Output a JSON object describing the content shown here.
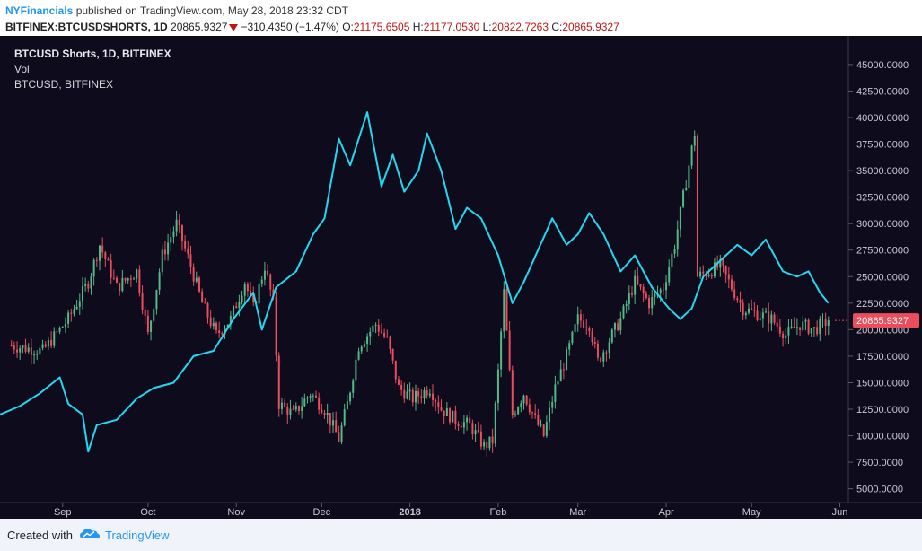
{
  "header": {
    "author": "NYFinancials",
    "published_text": "published on TradingView.com, May 28, 2018 23:32 CDT",
    "symbol": "BITFINEX:BTCUSDSHORTS, 1D",
    "last": "20865.9327",
    "change": "−310.4350 (−1.47%)",
    "o_label": "O:",
    "o_value": "21175.6505",
    "h_label": "H:",
    "h_value": "21177.0530",
    "l_label": "L:",
    "l_value": "20822.7263",
    "c_label": "C:",
    "c_value": "20865.9327"
  },
  "legend": {
    "line1": "BTCUSD Shorts, 1D, BITFINEX",
    "line2": "Vol",
    "line3": "BTCUSD, BITFINEX"
  },
  "footer": {
    "created_with": "Created with",
    "brand": "TradingView",
    "brand_icon": "tradingview-cloud-icon"
  },
  "colors": {
    "background": "#0d0b1c",
    "up": "#53b987",
    "down": "#eb4d5c",
    "btc_line": "#23d8f0",
    "price_tag": "#eb4d5c"
  },
  "chart_data": {
    "type": "candlestick",
    "y_axis": {
      "min": 3700,
      "max": 47700,
      "ticks": [
        5000,
        7500,
        10000,
        12500,
        15000,
        17500,
        20000,
        22500,
        25000,
        27500,
        30000,
        32500,
        35000,
        37500,
        40000,
        42500,
        45000
      ],
      "tick_labels": [
        "5000.0000",
        "7500.0000",
        "10000.0000",
        "12500.0000",
        "15000.0000",
        "17500.0000",
        "20000.0000",
        "22500.0000",
        "25000.0000",
        "27500.0000",
        "30000.0000",
        "32500.0000",
        "35000.0000",
        "37500.0000",
        "40000.0000",
        "42500.0000",
        "45000.0000"
      ],
      "position": "right"
    },
    "x_axis": {
      "start": "2017-08-10",
      "end": "2018-06-04",
      "ticks": [
        {
          "date": "2017-09-01",
          "label": "Sep",
          "bold": false
        },
        {
          "date": "2017-10-01",
          "label": "Oct",
          "bold": false
        },
        {
          "date": "2017-11-01",
          "label": "Nov",
          "bold": false
        },
        {
          "date": "2017-12-01",
          "label": "Dec",
          "bold": false
        },
        {
          "date": "2018-01-01",
          "label": "2018",
          "bold": true
        },
        {
          "date": "2018-02-01",
          "label": "Feb",
          "bold": false
        },
        {
          "date": "2018-03-01",
          "label": "Mar",
          "bold": false
        },
        {
          "date": "2018-04-01",
          "label": "Apr",
          "bold": false
        },
        {
          "date": "2018-05-01",
          "label": "May",
          "bold": false
        },
        {
          "date": "2018-06-01",
          "label": "Jun",
          "bold": false
        }
      ]
    },
    "last_price_tag": "20865.9327",
    "last_price_value": 20865.9327,
    "series": [
      {
        "name": "BTCUSD Shorts",
        "kind": "candles",
        "anchors": [
          {
            "date": "2017-08-14",
            "value": 18500
          },
          {
            "date": "2017-08-25",
            "value": 18000
          },
          {
            "date": "2017-09-03",
            "value": 21000
          },
          {
            "date": "2017-09-10",
            "value": 24500
          },
          {
            "date": "2017-09-14",
            "value": 28000
          },
          {
            "date": "2017-09-20",
            "value": 24000
          },
          {
            "date": "2017-09-27",
            "value": 25500
          },
          {
            "date": "2017-10-01",
            "value": 19500
          },
          {
            "date": "2017-10-06",
            "value": 27000
          },
          {
            "date": "2017-10-11",
            "value": 30000
          },
          {
            "date": "2017-10-16",
            "value": 26000
          },
          {
            "date": "2017-10-20",
            "value": 22500
          },
          {
            "date": "2017-10-25",
            "value": 19500
          },
          {
            "date": "2017-10-30",
            "value": 21000
          },
          {
            "date": "2017-11-04",
            "value": 24500
          },
          {
            "date": "2017-11-07",
            "value": 22000
          },
          {
            "date": "2017-11-11",
            "value": 26000
          },
          {
            "date": "2017-11-14",
            "value": 22500
          },
          {
            "date": "2017-11-16",
            "value": 13000
          },
          {
            "date": "2017-11-21",
            "value": 12000
          },
          {
            "date": "2017-11-27",
            "value": 14000
          },
          {
            "date": "2017-12-02",
            "value": 12500
          },
          {
            "date": "2017-12-07",
            "value": 9700
          },
          {
            "date": "2017-12-10",
            "value": 13000
          },
          {
            "date": "2017-12-14",
            "value": 18500
          },
          {
            "date": "2017-12-20",
            "value": 20500
          },
          {
            "date": "2017-12-24",
            "value": 19000
          },
          {
            "date": "2017-12-28",
            "value": 14500
          },
          {
            "date": "2018-01-02",
            "value": 13500
          },
          {
            "date": "2018-01-08",
            "value": 14500
          },
          {
            "date": "2018-01-12",
            "value": 12500
          },
          {
            "date": "2018-01-17",
            "value": 11500
          },
          {
            "date": "2018-01-22",
            "value": 11000
          },
          {
            "date": "2018-01-27",
            "value": 9000
          },
          {
            "date": "2018-01-30",
            "value": 9500
          },
          {
            "date": "2018-02-01",
            "value": 16000
          },
          {
            "date": "2018-02-03",
            "value": 23500
          },
          {
            "date": "2018-02-06",
            "value": 12000
          },
          {
            "date": "2018-02-10",
            "value": 14000
          },
          {
            "date": "2018-02-14",
            "value": 11500
          },
          {
            "date": "2018-02-17",
            "value": 10000
          },
          {
            "date": "2018-02-21",
            "value": 14500
          },
          {
            "date": "2018-02-25",
            "value": 17500
          },
          {
            "date": "2018-03-01",
            "value": 21000
          },
          {
            "date": "2018-03-05",
            "value": 20500
          },
          {
            "date": "2018-03-08",
            "value": 17000
          },
          {
            "date": "2018-03-12",
            "value": 19000
          },
          {
            "date": "2018-03-16",
            "value": 21000
          },
          {
            "date": "2018-03-21",
            "value": 24500
          },
          {
            "date": "2018-03-26",
            "value": 22500
          },
          {
            "date": "2018-03-31",
            "value": 24000
          },
          {
            "date": "2018-04-04",
            "value": 28000
          },
          {
            "date": "2018-04-08",
            "value": 34000
          },
          {
            "date": "2018-04-11",
            "value": 38500
          },
          {
            "date": "2018-04-12",
            "value": 25000
          },
          {
            "date": "2018-04-16",
            "value": 25500
          },
          {
            "date": "2018-04-20",
            "value": 26000
          },
          {
            "date": "2018-04-24",
            "value": 24000
          },
          {
            "date": "2018-04-28",
            "value": 22000
          },
          {
            "date": "2018-05-03",
            "value": 21500
          },
          {
            "date": "2018-05-08",
            "value": 21000
          },
          {
            "date": "2018-05-13",
            "value": 19500
          },
          {
            "date": "2018-05-18",
            "value": 20500
          },
          {
            "date": "2018-05-23",
            "value": 20000
          },
          {
            "date": "2018-05-28",
            "value": 20866
          }
        ],
        "colors": {
          "up": "#53b987",
          "down": "#eb4d5c"
        }
      },
      {
        "name": "BTCUSD",
        "kind": "line",
        "color": "#23d8f0",
        "points": [
          {
            "date": "2017-08-10",
            "value": 12000
          },
          {
            "date": "2017-08-17",
            "value": 12800
          },
          {
            "date": "2017-08-24",
            "value": 14000
          },
          {
            "date": "2017-08-31",
            "value": 15500
          },
          {
            "date": "2017-09-03",
            "value": 13000
          },
          {
            "date": "2017-09-08",
            "value": 12000
          },
          {
            "date": "2017-09-10",
            "value": 8500
          },
          {
            "date": "2017-09-13",
            "value": 11000
          },
          {
            "date": "2017-09-20",
            "value": 11500
          },
          {
            "date": "2017-09-27",
            "value": 13500
          },
          {
            "date": "2017-10-03",
            "value": 14500
          },
          {
            "date": "2017-10-10",
            "value": 15000
          },
          {
            "date": "2017-10-17",
            "value": 17500
          },
          {
            "date": "2017-10-24",
            "value": 18000
          },
          {
            "date": "2017-10-31",
            "value": 21000
          },
          {
            "date": "2017-11-07",
            "value": 23500
          },
          {
            "date": "2017-11-10",
            "value": 20000
          },
          {
            "date": "2017-11-15",
            "value": 24000
          },
          {
            "date": "2017-11-22",
            "value": 25500
          },
          {
            "date": "2017-11-28",
            "value": 29000
          },
          {
            "date": "2017-12-02",
            "value": 30500
          },
          {
            "date": "2017-12-07",
            "value": 38000
          },
          {
            "date": "2017-12-11",
            "value": 35500
          },
          {
            "date": "2017-12-17",
            "value": 40500
          },
          {
            "date": "2017-12-22",
            "value": 33500
          },
          {
            "date": "2017-12-26",
            "value": 36500
          },
          {
            "date": "2017-12-30",
            "value": 33000
          },
          {
            "date": "2018-01-04",
            "value": 35000
          },
          {
            "date": "2018-01-07",
            "value": 38500
          },
          {
            "date": "2018-01-12",
            "value": 35000
          },
          {
            "date": "2018-01-17",
            "value": 29500
          },
          {
            "date": "2018-01-21",
            "value": 31500
          },
          {
            "date": "2018-01-26",
            "value": 30500
          },
          {
            "date": "2018-02-01",
            "value": 27000
          },
          {
            "date": "2018-02-06",
            "value": 22500
          },
          {
            "date": "2018-02-10",
            "value": 24500
          },
          {
            "date": "2018-02-15",
            "value": 27500
          },
          {
            "date": "2018-02-20",
            "value": 30500
          },
          {
            "date": "2018-02-25",
            "value": 28000
          },
          {
            "date": "2018-03-01",
            "value": 29000
          },
          {
            "date": "2018-03-05",
            "value": 31000
          },
          {
            "date": "2018-03-10",
            "value": 29000
          },
          {
            "date": "2018-03-16",
            "value": 25500
          },
          {
            "date": "2018-03-21",
            "value": 27000
          },
          {
            "date": "2018-03-27",
            "value": 24000
          },
          {
            "date": "2018-04-02",
            "value": 22000
          },
          {
            "date": "2018-04-06",
            "value": 21000
          },
          {
            "date": "2018-04-10",
            "value": 22000
          },
          {
            "date": "2018-04-14",
            "value": 25000
          },
          {
            "date": "2018-04-20",
            "value": 26500
          },
          {
            "date": "2018-04-26",
            "value": 28000
          },
          {
            "date": "2018-05-01",
            "value": 27000
          },
          {
            "date": "2018-05-06",
            "value": 28500
          },
          {
            "date": "2018-05-12",
            "value": 25500
          },
          {
            "date": "2018-05-17",
            "value": 25000
          },
          {
            "date": "2018-05-21",
            "value": 25500
          },
          {
            "date": "2018-05-25",
            "value": 23500
          },
          {
            "date": "2018-05-28",
            "value": 22500
          }
        ]
      }
    ]
  }
}
